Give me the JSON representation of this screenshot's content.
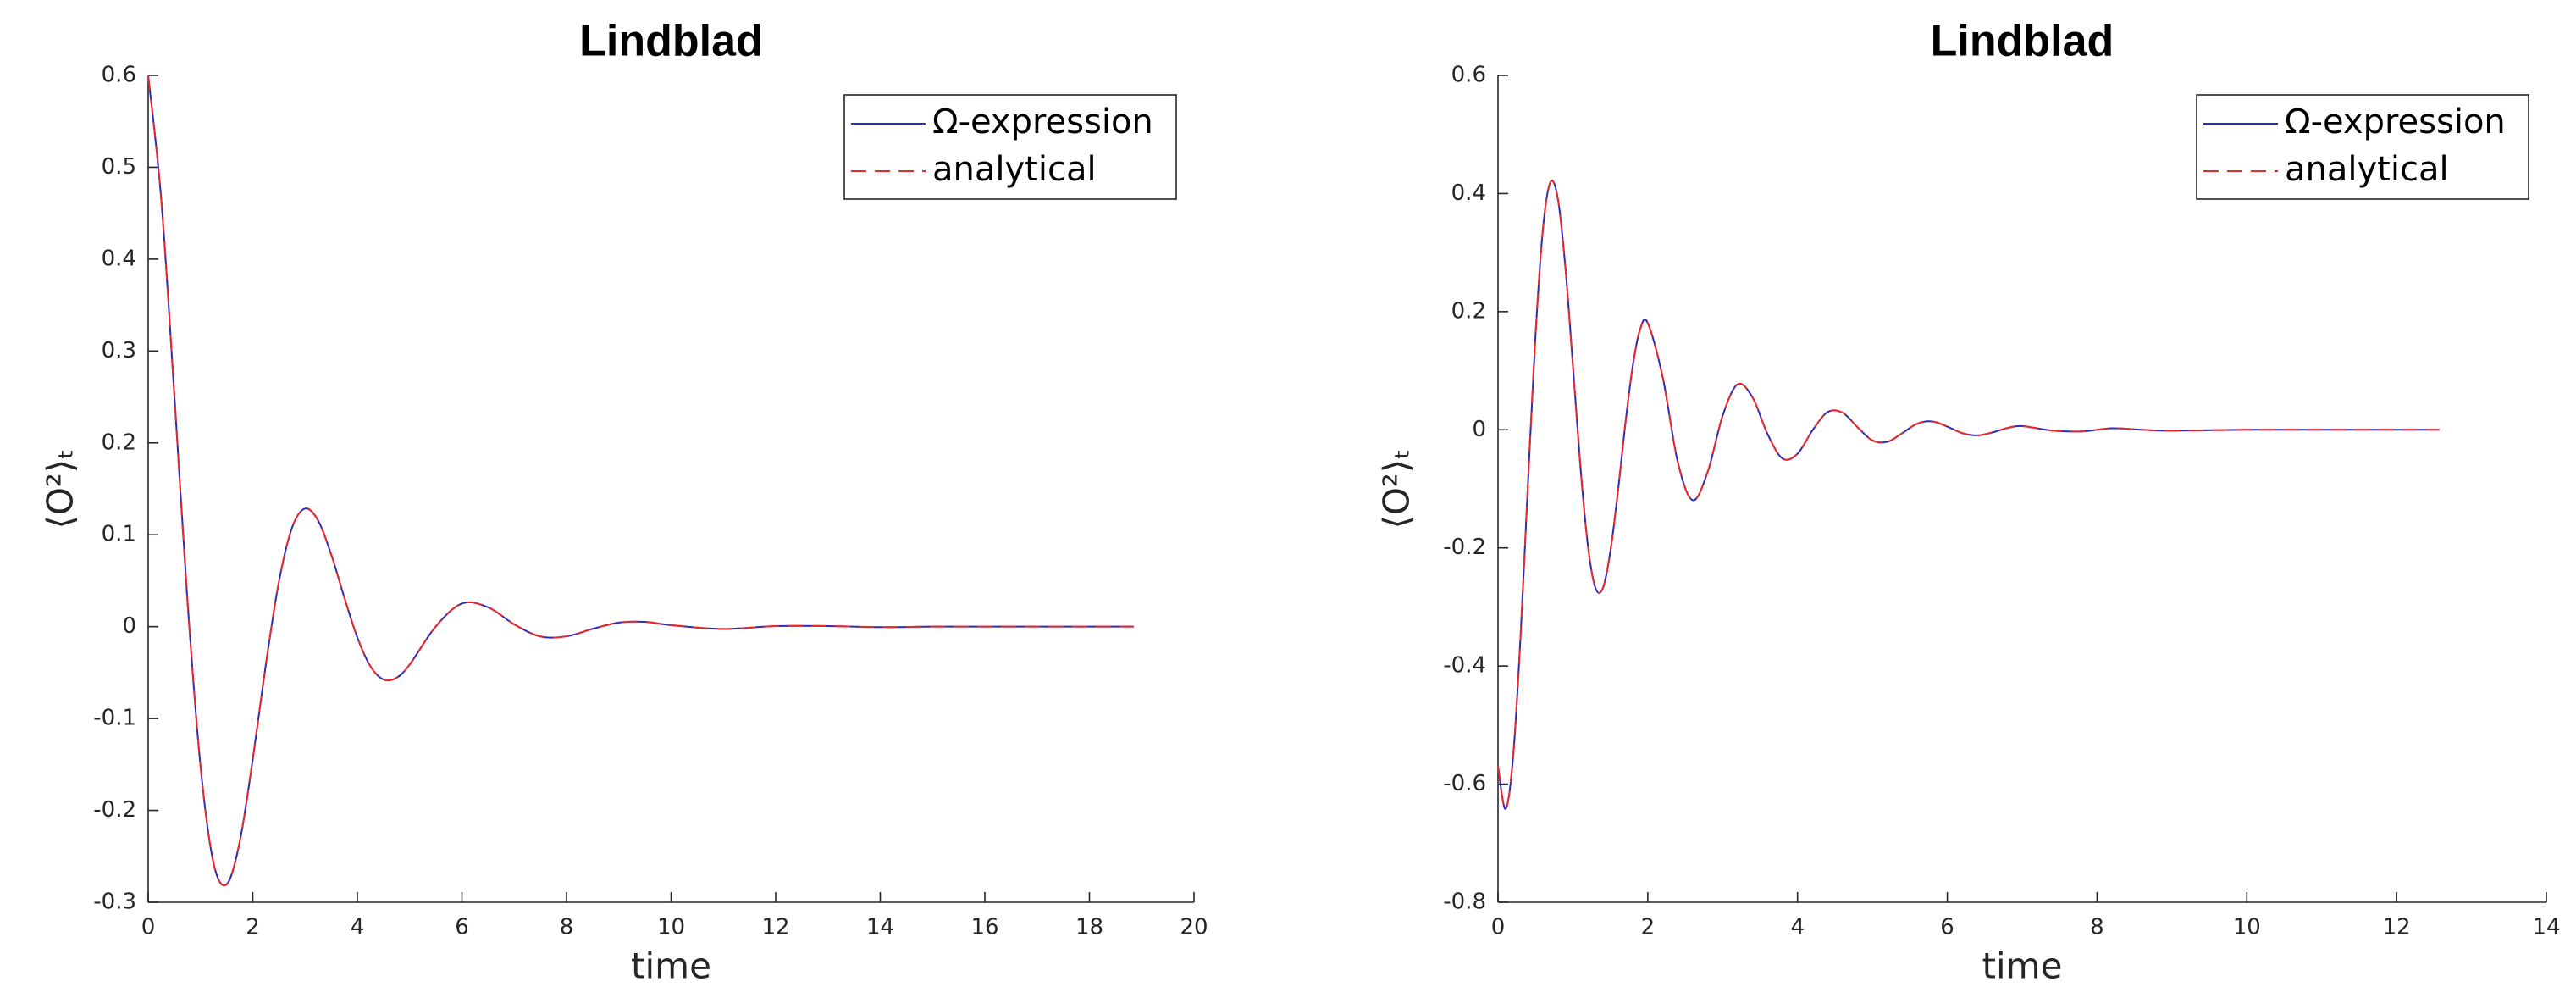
{
  "chart_data": [
    {
      "type": "line",
      "title": "Lindblad",
      "xlabel": "time",
      "ylabel": "⟨O²⟩ₜ",
      "x": [
        0,
        0.25,
        0.5,
        0.75,
        1,
        1.25,
        1.5,
        1.75,
        2,
        2.25,
        2.5,
        2.75,
        3,
        3.25,
        3.5,
        3.75,
        4,
        4.25,
        4.5,
        4.75,
        5,
        5.5,
        6,
        6.5,
        7,
        7.5,
        8,
        8.5,
        9,
        9.5,
        10,
        11,
        12,
        13,
        14,
        15,
        16,
        17,
        18,
        18.85
      ],
      "series": [
        {
          "name": "Ω-expression",
          "color": "#2b2bb8",
          "linestyle": "solid",
          "values": [
            0.6,
            0.4647,
            0.2525,
            0.0292,
            -0.1514,
            -0.2573,
            -0.2806,
            -0.2343,
            -0.1443,
            -0.0411,
            0.0488,
            0.1075,
            0.1285,
            0.1154,
            0.0786,
            0.0319,
            -0.0118,
            -0.0431,
            -0.0576,
            -0.0556,
            -0.0413,
            0.0002,
            0.0252,
            0.0211,
            0.0025,
            -0.0107,
            -0.0105,
            -0.0024,
            0.0044,
            0.0052,
            0.0016,
            -0.0025,
            0.0006,
            0.0006,
            -0.0005,
            0,
            0,
            0,
            0,
            0
          ]
        },
        {
          "name": "analytical",
          "color": "#e8292b",
          "linestyle": "dashed",
          "values": [
            0.6,
            0.4647,
            0.2525,
            0.0292,
            -0.1514,
            -0.2573,
            -0.2806,
            -0.2343,
            -0.1443,
            -0.0411,
            0.0488,
            0.1075,
            0.1285,
            0.1154,
            0.0786,
            0.0319,
            -0.0118,
            -0.0431,
            -0.0576,
            -0.0556,
            -0.0413,
            0.0002,
            0.0252,
            0.0211,
            0.0025,
            -0.0107,
            -0.0105,
            -0.0024,
            0.0044,
            0.0052,
            0.0016,
            -0.0025,
            0.0006,
            0.0006,
            -0.0005,
            0,
            0,
            0,
            0,
            0
          ]
        }
      ],
      "xlim": [
        0,
        20
      ],
      "ylim": [
        -0.3,
        0.6
      ],
      "xticks": [
        0,
        2,
        4,
        6,
        8,
        10,
        12,
        14,
        16,
        18,
        20
      ],
      "yticks": [
        -0.3,
        -0.2,
        -0.1,
        0,
        0.1,
        0.2,
        0.3,
        0.4,
        0.5,
        0.6
      ],
      "legend": "upper right"
    },
    {
      "type": "line",
      "title": "Lindblad",
      "xlabel": "time",
      "ylabel": "⟨O²⟩ₜ",
      "x": [
        0,
        0.1,
        0.2,
        0.3,
        0.4,
        0.5,
        0.6,
        0.7,
        0.8,
        0.9,
        1,
        1.1,
        1.2,
        1.3,
        1.4,
        1.5,
        1.6,
        1.7,
        1.8,
        1.9,
        2,
        2.2,
        2.4,
        2.6,
        2.8,
        3,
        3.2,
        3.4,
        3.6,
        3.8,
        4,
        4.2,
        4.4,
        4.6,
        4.8,
        5,
        5.2,
        5.4,
        5.6,
        5.8,
        6,
        6.2,
        6.4,
        6.6,
        6.8,
        7,
        7.4,
        7.8,
        8.2,
        8.6,
        9,
        10,
        11,
        12,
        12.57
      ],
      "series": [
        {
          "name": "Ω-expression",
          "color": "#2b2bb8",
          "linestyle": "solid",
          "values": [
            -0.569,
            -0.642,
            -0.5565,
            -0.3526,
            -0.0913,
            0.1581,
            0.3398,
            0.4193,
            0.3909,
            0.2748,
            0.109,
            -0.0611,
            -0.1956,
            -0.2675,
            -0.2683,
            -0.2062,
            -0.1065,
            0.0096,
            0.1085,
            0.171,
            0.1806,
            0.0888,
            -0.0542,
            -0.1192,
            -0.0713,
            0.0239,
            0.077,
            0.0545,
            -0.0074,
            -0.0487,
            -0.0405,
            -0.0009,
            0.0299,
            0.0291,
            0.0045,
            -0.018,
            -0.0204,
            -0.0056,
            0.0104,
            0.0141,
            0.0054,
            -0.0057,
            -0.0095,
            -0.0046,
            0.0029,
            0.0062,
            -0.0013,
            -0.0028,
            0.0025,
            0,
            -0.0016,
            0,
            0,
            0,
            0
          ]
        },
        {
          "name": "analytical",
          "color": "#e8292b",
          "linestyle": "dashed",
          "values": [
            -0.569,
            -0.642,
            -0.5565,
            -0.3526,
            -0.0913,
            0.1581,
            0.3398,
            0.4193,
            0.3909,
            0.2748,
            0.109,
            -0.0611,
            -0.1956,
            -0.2675,
            -0.2683,
            -0.2062,
            -0.1065,
            0.0096,
            0.1085,
            0.171,
            0.1806,
            0.0888,
            -0.0542,
            -0.1192,
            -0.0713,
            0.0239,
            0.077,
            0.0545,
            -0.0074,
            -0.0487,
            -0.0405,
            -0.0009,
            0.0299,
            0.0291,
            0.0045,
            -0.018,
            -0.0204,
            -0.0056,
            0.0104,
            0.0141,
            0.0054,
            -0.0057,
            -0.0095,
            -0.0046,
            0.0029,
            0.0062,
            -0.0013,
            -0.0028,
            0.0025,
            0,
            -0.0016,
            0,
            0,
            0,
            0
          ]
        }
      ],
      "xlim": [
        0,
        14
      ],
      "ylim": [
        -0.8,
        0.6
      ],
      "xticks": [
        0,
        2,
        4,
        6,
        8,
        10,
        12,
        14
      ],
      "yticks": [
        -0.8,
        -0.6,
        -0.4,
        -0.2,
        0,
        0.2,
        0.4,
        0.6
      ],
      "legend": "upper right"
    }
  ]
}
